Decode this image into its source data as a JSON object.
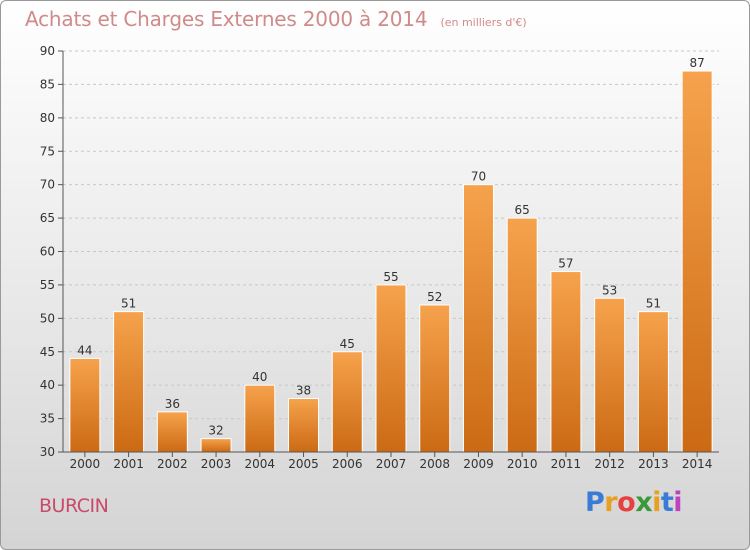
{
  "chart_data": {
    "type": "bar",
    "title": "Achats et Charges Externes 2000 à 2014",
    "subtitle": "(en milliers d'€)",
    "xlabel": "",
    "ylabel": "",
    "categories": [
      "2000",
      "2001",
      "2002",
      "2003",
      "2004",
      "2005",
      "2006",
      "2007",
      "2008",
      "2009",
      "2010",
      "2011",
      "2012",
      "2013",
      "2014"
    ],
    "values": [
      44,
      51,
      36,
      32,
      40,
      38,
      45,
      55,
      52,
      70,
      65,
      57,
      53,
      51,
      87
    ],
    "ylim": [
      30,
      90
    ],
    "yticks": [
      30,
      35,
      40,
      45,
      50,
      55,
      60,
      65,
      70,
      75,
      80,
      85,
      90
    ],
    "grid": true,
    "bar_color": "#f0913a"
  },
  "commune": "BURCIN",
  "brand": {
    "letters": [
      "P",
      "r",
      "o",
      "x",
      "i",
      "t",
      "i"
    ],
    "colors": [
      "#3a7bd5",
      "#e8a020",
      "#e84040",
      "#3a9a3a",
      "#e8a020",
      "#3a7bd5",
      "#c040c0"
    ]
  }
}
